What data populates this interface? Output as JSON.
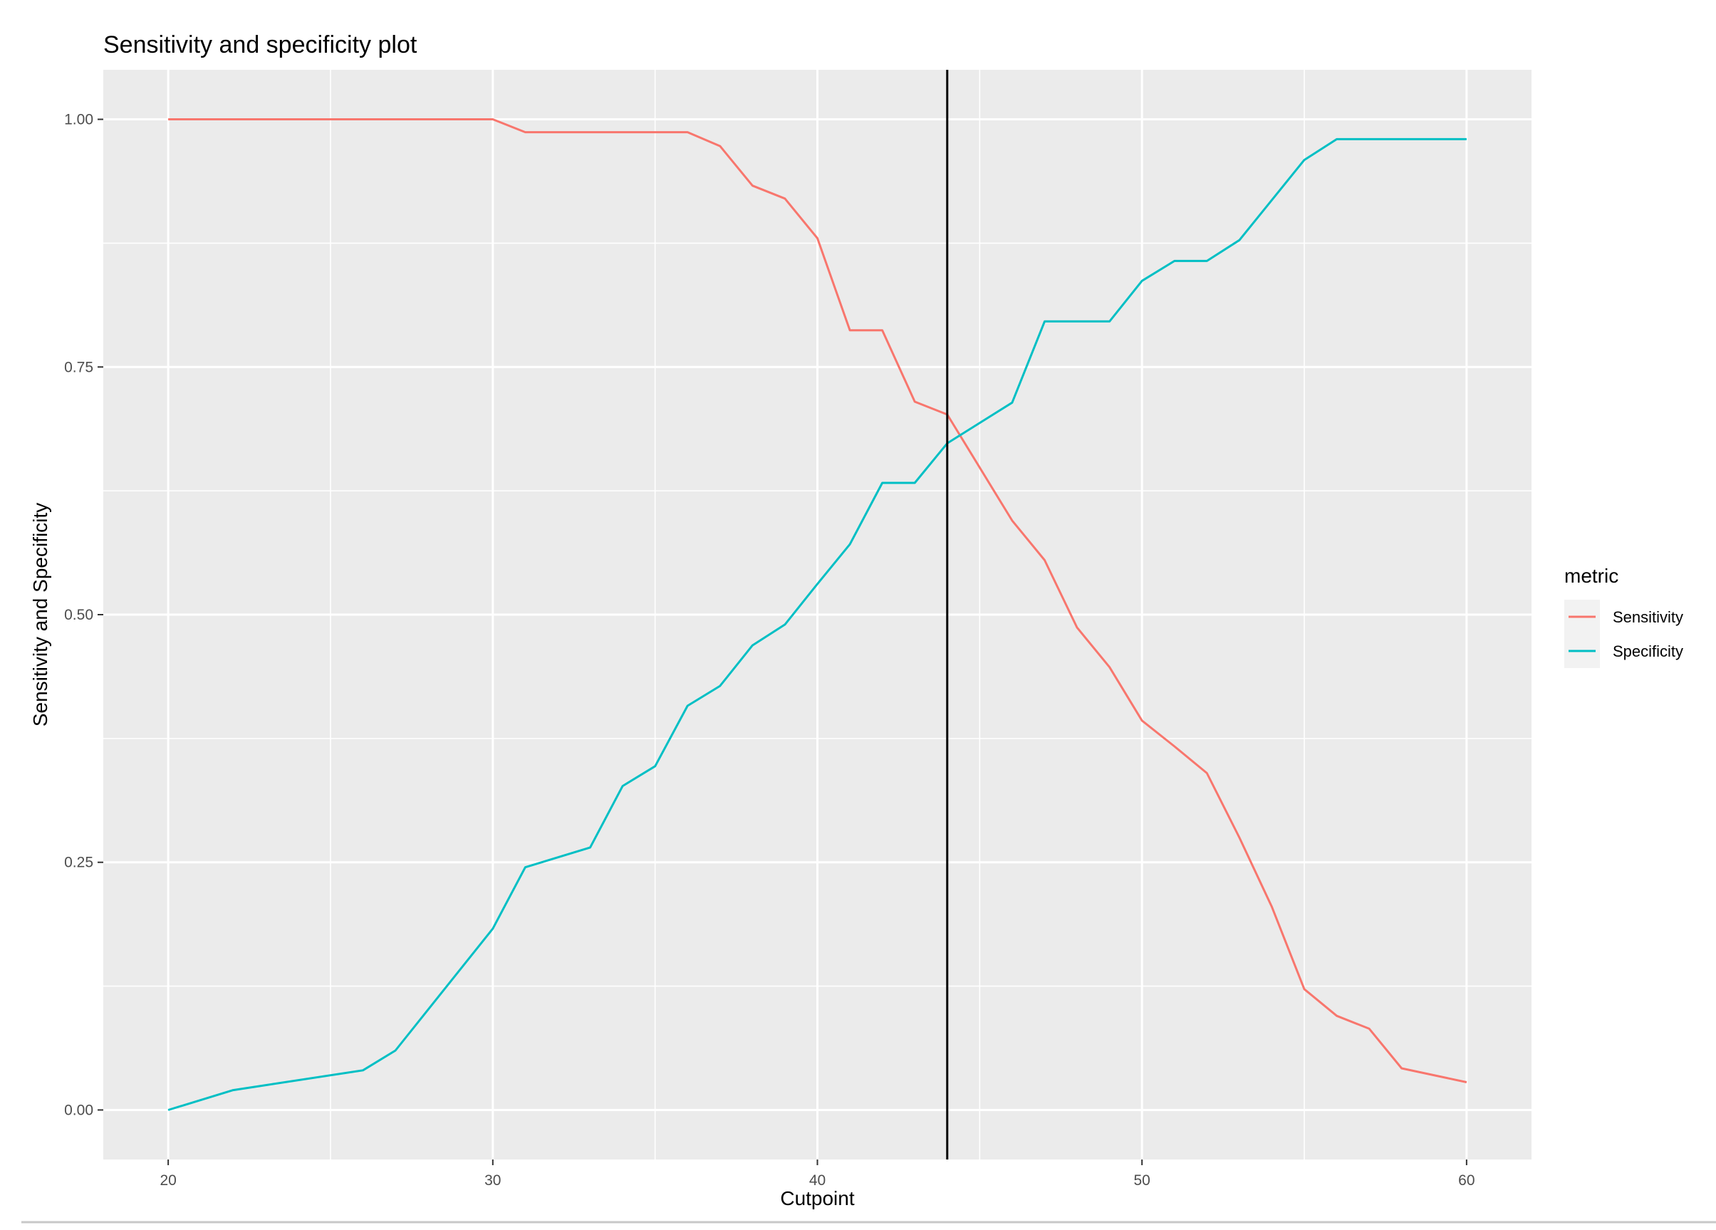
{
  "chart_data": {
    "type": "line",
    "title": "Sensitivity and specificity plot",
    "xlabel": "Cutpoint",
    "ylabel": "Sensitivity and Specificity",
    "xlim": [
      18,
      62
    ],
    "ylim": [
      -0.05,
      1.05
    ],
    "x_ticks": [
      20,
      30,
      40,
      50,
      60
    ],
    "x_tick_labels": [
      "20",
      "30",
      "40",
      "50",
      "60"
    ],
    "y_ticks": [
      0,
      0.25,
      0.5,
      0.75,
      1
    ],
    "y_tick_labels": [
      "0.00",
      "0.25",
      "0.50",
      "0.75",
      "1.00"
    ],
    "grid": true,
    "background": "#ebebeb",
    "grid_color": "#ffffff",
    "vline": {
      "x": 44,
      "color": "#000000"
    },
    "legend": {
      "title": "metric",
      "placement": "right"
    },
    "series": [
      {
        "name": "Sensitivity",
        "color": "#f8766d",
        "points": [
          [
            20,
            1.0
          ],
          [
            30,
            1.0
          ],
          [
            31,
            0.987
          ],
          [
            36,
            0.987
          ],
          [
            37,
            0.973
          ],
          [
            38,
            0.933
          ],
          [
            39,
            0.92
          ],
          [
            40,
            0.88
          ],
          [
            41,
            0.787
          ],
          [
            42,
            0.787
          ],
          [
            43,
            0.715
          ],
          [
            44,
            0.702
          ],
          [
            46,
            0.595
          ],
          [
            47,
            0.555
          ],
          [
            48,
            0.487
          ],
          [
            49,
            0.447
          ],
          [
            50,
            0.393
          ],
          [
            51,
            0.367
          ],
          [
            52,
            0.34
          ],
          [
            53,
            0.275
          ],
          [
            54,
            0.205
          ],
          [
            55,
            0.122
          ],
          [
            56,
            0.095
          ],
          [
            57,
            0.082
          ],
          [
            58,
            0.042
          ],
          [
            60,
            0.028
          ]
        ]
      },
      {
        "name": "Specificity",
        "color": "#00bfc4",
        "points": [
          [
            20,
            0.0
          ],
          [
            22,
            0.02
          ],
          [
            26,
            0.04
          ],
          [
            27,
            0.06
          ],
          [
            30,
            0.183
          ],
          [
            31,
            0.245
          ],
          [
            33,
            0.265
          ],
          [
            34,
            0.327
          ],
          [
            35,
            0.347
          ],
          [
            36,
            0.408
          ],
          [
            37,
            0.428
          ],
          [
            38,
            0.469
          ],
          [
            39,
            0.49
          ],
          [
            40,
            0.531
          ],
          [
            41,
            0.571
          ],
          [
            42,
            0.633
          ],
          [
            43,
            0.633
          ],
          [
            44,
            0.673
          ],
          [
            46,
            0.714
          ],
          [
            47,
            0.796
          ],
          [
            49,
            0.796
          ],
          [
            50,
            0.837
          ],
          [
            51,
            0.857
          ],
          [
            52,
            0.857
          ],
          [
            53,
            0.878
          ],
          [
            55,
            0.959
          ],
          [
            56,
            0.98
          ],
          [
            60,
            0.98
          ]
        ]
      }
    ]
  }
}
